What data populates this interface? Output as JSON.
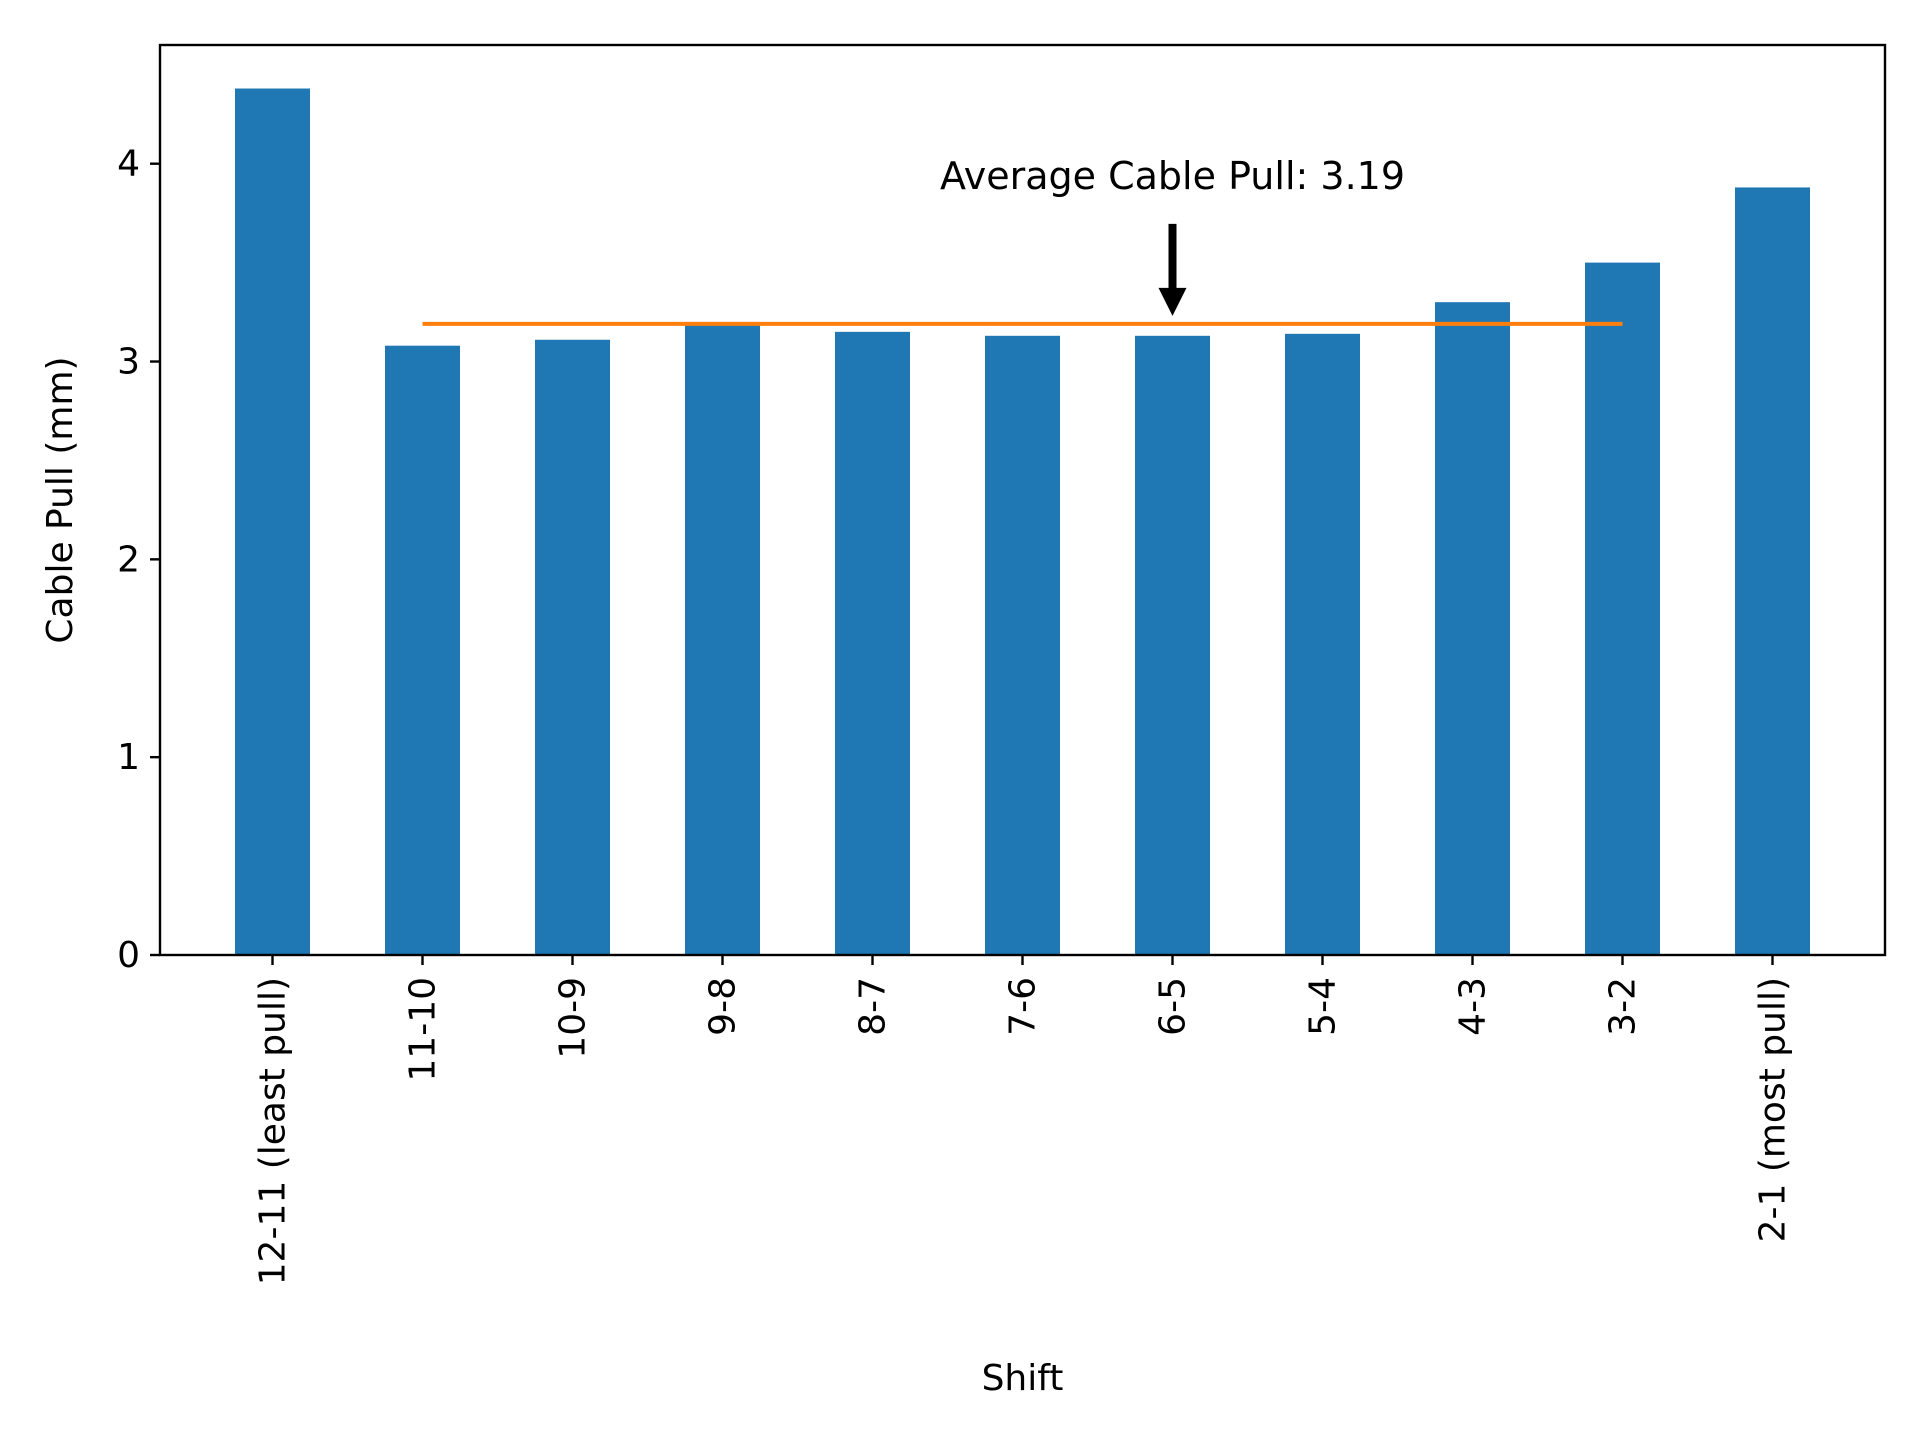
{
  "chart_data": {
    "type": "bar",
    "title": "",
    "xlabel": "Shift",
    "ylabel": "Cable Pull (mm)",
    "categories": [
      "12-11 (least pull)",
      "11-10",
      "10-9",
      "9-8",
      "8-7",
      "7-6",
      "6-5",
      "5-4",
      "4-3",
      "3-2",
      "2-1 (most pull)"
    ],
    "values": [
      4.38,
      3.08,
      3.11,
      3.2,
      3.15,
      3.13,
      3.13,
      3.14,
      3.3,
      3.5,
      3.88
    ],
    "ylim": [
      0,
      4.6
    ],
    "yticks": [
      0,
      1,
      2,
      3,
      4
    ],
    "grid": false,
    "legend": "none",
    "average_line": {
      "value": 3.19,
      "from_category": "11-10",
      "to_category": "3-2"
    },
    "annotation": {
      "text": "Average Cable Pull: 3.19",
      "points_to_category": "6-5"
    },
    "colors": {
      "bar": "#1f77b4",
      "average_line": "#ff7f0e",
      "arrow": "#000000"
    }
  }
}
